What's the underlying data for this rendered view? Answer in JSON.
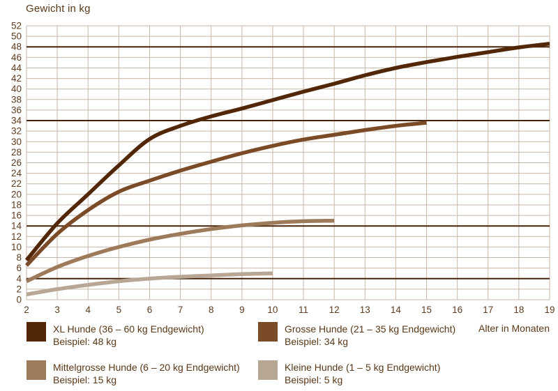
{
  "header": {
    "title": "Gewicht in kg"
  },
  "chart_data": {
    "type": "line",
    "title": "Gewicht in kg",
    "xlabel": "Alter in Monaten",
    "ylabel": "Gewicht in kg",
    "xlim": [
      2,
      19
    ],
    "ylim": [
      0,
      52
    ],
    "x_ticks": [
      2,
      3,
      4,
      5,
      6,
      7,
      8,
      9,
      10,
      11,
      12,
      13,
      14,
      15,
      16,
      17,
      18,
      19
    ],
    "y_ticks": [
      0,
      2,
      4,
      6,
      8,
      10,
      12,
      14,
      16,
      18,
      20,
      22,
      24,
      26,
      28,
      30,
      32,
      34,
      36,
      38,
      40,
      42,
      44,
      46,
      48,
      50,
      52
    ],
    "grid": true,
    "legend_position": "bottom",
    "reference_lines": [
      48,
      34,
      14,
      4
    ],
    "colors": {
      "grid": "#c7b7a7",
      "reference": "#472309",
      "text": "#5f3c1f",
      "background": "#ffffff"
    },
    "series": [
      {
        "id": "xl",
        "label": "XL Hunde (36 – 60 kg Endgewicht)",
        "example": "Beispiel: 48 kg",
        "color": "#522708",
        "points": [
          [
            2,
            7.5
          ],
          [
            3,
            14.5
          ],
          [
            4,
            20
          ],
          [
            5,
            25.5
          ],
          [
            6,
            30.5
          ],
          [
            7,
            33
          ],
          [
            8,
            34.8
          ],
          [
            9,
            36.3
          ],
          [
            10,
            37.9
          ],
          [
            11,
            39.5
          ],
          [
            12,
            41
          ],
          [
            13,
            42.6
          ],
          [
            14,
            44
          ],
          [
            15,
            45.1
          ],
          [
            16,
            46.1
          ],
          [
            17,
            47
          ],
          [
            18,
            47.9
          ],
          [
            19,
            48.6
          ]
        ]
      },
      {
        "id": "grosse",
        "label": "Grosse Hunde (21 – 35 kg Endgewicht)",
        "example": "Beispiel: 34 kg",
        "color": "#7b4b27",
        "points": [
          [
            2,
            6.5
          ],
          [
            3,
            12.5
          ],
          [
            4,
            17
          ],
          [
            5,
            20.5
          ],
          [
            6,
            22.6
          ],
          [
            7,
            24.5
          ],
          [
            8,
            26.2
          ],
          [
            9,
            27.8
          ],
          [
            10,
            29.2
          ],
          [
            11,
            30.4
          ],
          [
            12,
            31.3
          ],
          [
            13,
            32.2
          ],
          [
            14,
            33
          ],
          [
            15,
            33.6
          ]
        ]
      },
      {
        "id": "mittelgrosse",
        "label": "Mittelgrosse Hunde (6 – 20 kg Endgewicht)",
        "example": "Beispiel: 15 kg",
        "color": "#9d7b5a",
        "points": [
          [
            2,
            3.5
          ],
          [
            3,
            6.2
          ],
          [
            4,
            8.3
          ],
          [
            5,
            10
          ],
          [
            6,
            11.4
          ],
          [
            7,
            12.5
          ],
          [
            8,
            13.4
          ],
          [
            9,
            14.1
          ],
          [
            10,
            14.6
          ],
          [
            11,
            14.9
          ],
          [
            12,
            15
          ]
        ]
      },
      {
        "id": "kleine",
        "label": "Kleine Hunde (1 – 5 kg Endgewicht)",
        "example": "Beispiel: 5 kg",
        "color": "#b8a794",
        "points": [
          [
            2,
            1
          ],
          [
            3,
            2
          ],
          [
            4,
            2.8
          ],
          [
            5,
            3.5
          ],
          [
            6,
            4
          ],
          [
            7,
            4.35
          ],
          [
            8,
            4.6
          ],
          [
            9,
            4.85
          ],
          [
            10,
            5
          ]
        ]
      }
    ]
  }
}
